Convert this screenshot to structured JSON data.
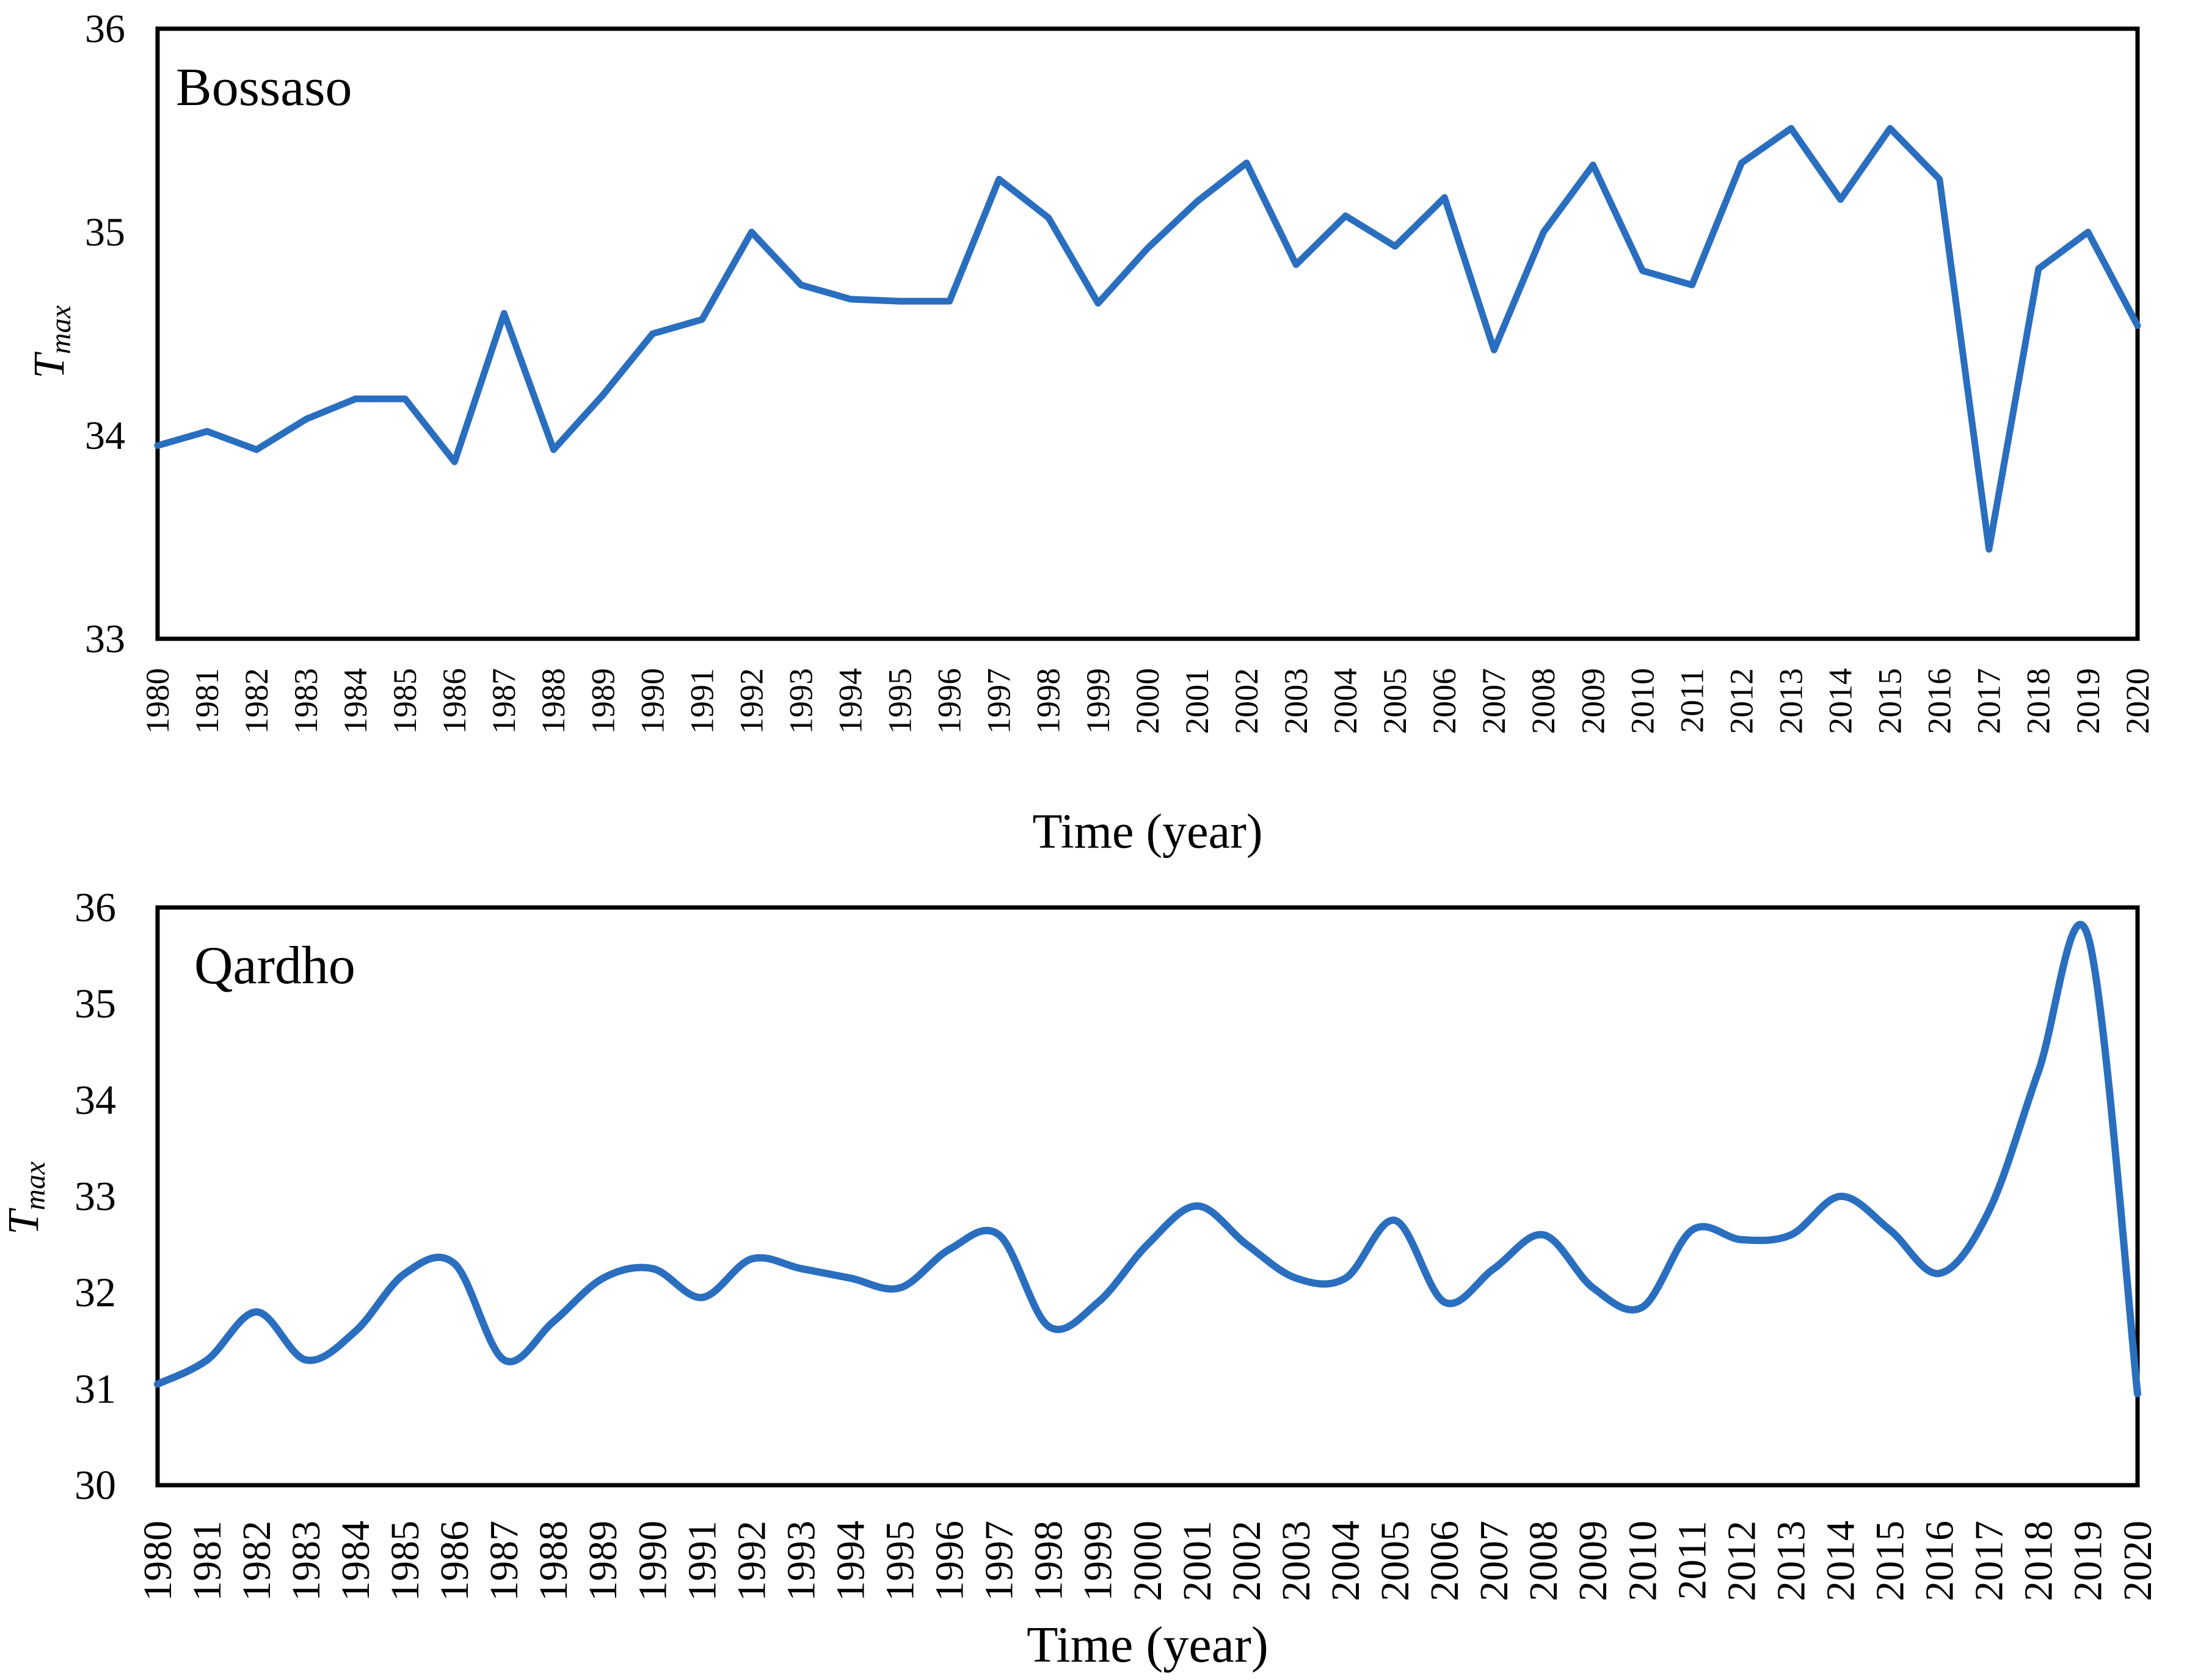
{
  "figure": {
    "background_color": "#ffffff",
    "axis_color": "#000000",
    "line_color": "#2a6ebf"
  },
  "chart_data": [
    {
      "type": "line",
      "title": "Bossaso",
      "xlabel": "Time (year)",
      "ylabel_base": "T",
      "ylabel_sub": "max",
      "line_color": "#2a6ebf",
      "smoothed": false,
      "grid": false,
      "legend": "none",
      "xlim": [
        1980,
        2020
      ],
      "ylim": [
        33,
        36
      ],
      "yticks": [
        33,
        34,
        35,
        36
      ],
      "years": [
        1980,
        1981,
        1982,
        1983,
        1984,
        1985,
        1986,
        1987,
        1988,
        1989,
        1990,
        1991,
        1992,
        1993,
        1994,
        1995,
        1996,
        1997,
        1998,
        1999,
        2000,
        2001,
        2002,
        2003,
        2004,
        2005,
        2006,
        2007,
        2008,
        2009,
        2010,
        2011,
        2012,
        2013,
        2014,
        2015,
        2016,
        2017,
        2018,
        2019,
        2020
      ],
      "values": [
        33.95,
        34.02,
        33.93,
        34.08,
        34.18,
        34.18,
        33.87,
        34.6,
        33.93,
        34.2,
        34.5,
        34.57,
        35.0,
        34.74,
        34.67,
        34.66,
        34.66,
        35.26,
        35.07,
        34.65,
        34.92,
        35.15,
        35.34,
        34.84,
        35.08,
        34.93,
        35.17,
        34.42,
        35.0,
        35.33,
        34.81,
        34.74,
        35.34,
        35.51,
        35.16,
        35.51,
        35.26,
        33.44,
        34.82,
        35.0,
        34.54
      ]
    },
    {
      "type": "line",
      "title": "Qardho",
      "xlabel": "Time (year)",
      "ylabel_base": "T",
      "ylabel_sub": "max",
      "line_color": "#2a6ebf",
      "smoothed": true,
      "grid": false,
      "legend": "none",
      "xlim": [
        1980,
        2020
      ],
      "ylim": [
        30,
        36
      ],
      "yticks": [
        30,
        31,
        32,
        33,
        34,
        35,
        36
      ],
      "years": [
        1980,
        1981,
        1982,
        1983,
        1984,
        1985,
        1986,
        1987,
        1988,
        1989,
        1990,
        1991,
        1992,
        1993,
        1994,
        1995,
        1996,
        1997,
        1998,
        1999,
        2000,
        2001,
        2002,
        2003,
        2004,
        2005,
        2006,
        2007,
        2008,
        2009,
        2010,
        2011,
        2012,
        2013,
        2014,
        2015,
        2016,
        2017,
        2018,
        2019,
        2020
      ],
      "values": [
        31.05,
        31.3,
        31.8,
        31.3,
        31.6,
        32.2,
        32.3,
        31.3,
        31.7,
        32.15,
        32.25,
        31.95,
        32.35,
        32.25,
        32.15,
        32.05,
        32.45,
        32.6,
        31.65,
        31.9,
        32.5,
        32.9,
        32.5,
        32.15,
        32.15,
        32.75,
        31.9,
        32.25,
        32.6,
        32.05,
        31.85,
        32.65,
        32.55,
        32.6,
        33.0,
        32.65,
        32.2,
        32.85,
        34.3,
        35.7,
        30.95
      ]
    }
  ]
}
